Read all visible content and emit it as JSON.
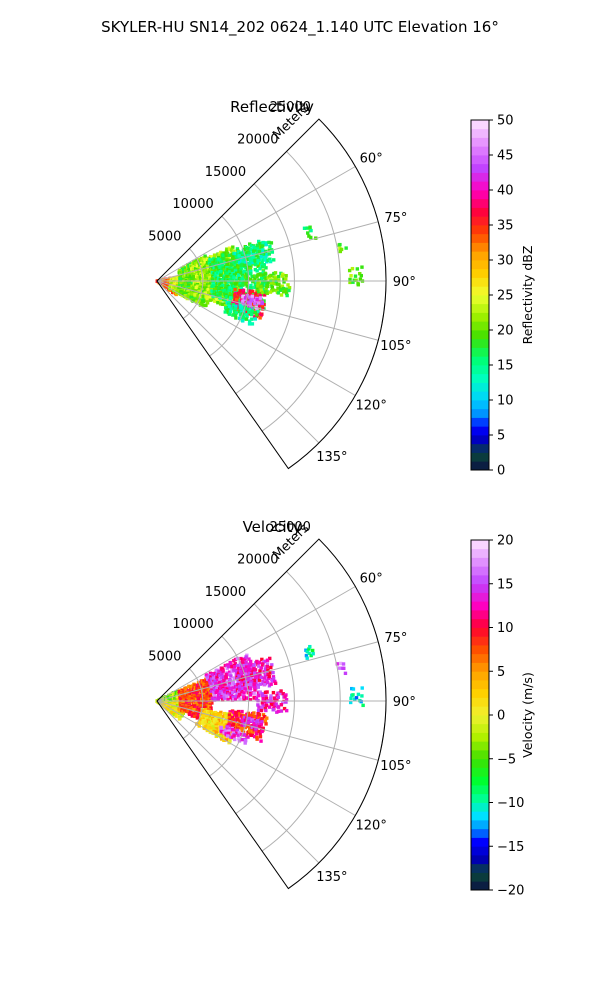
{
  "figure": {
    "suptitle": "SKYLER-HU  SN14_202  0624_1.140 UTC Elevation 16°"
  },
  "chart_data": [
    {
      "type": "polar-sector",
      "title": "Reflectivity",
      "range_label": "Meters",
      "r_ticks": [
        5000,
        10000,
        15000,
        20000,
        25000
      ],
      "r_tick_labels": [
        "5000",
        "10000",
        "15000",
        "20000",
        "25000"
      ],
      "r_max": 25000,
      "theta_ticks": [
        60,
        75,
        90,
        105,
        120,
        135
      ],
      "theta_tick_labels": [
        "60°",
        "75°",
        "90°",
        "105°",
        "120°",
        "135°"
      ],
      "theta_range": [
        45,
        145
      ],
      "colorbar": {
        "label": "Reflectivity dBZ",
        "min": 0,
        "max": 50,
        "ticks": [
          0,
          5,
          10,
          15,
          20,
          25,
          30,
          35,
          40,
          45,
          50
        ],
        "tick_labels": [
          "0",
          "5",
          "10",
          "15",
          "20",
          "25",
          "30",
          "35",
          "40",
          "45",
          "50"
        ],
        "stops": [
          {
            "v": 0,
            "c": "#0b0f45"
          },
          {
            "v": 2.5,
            "c": "#0a4a3a"
          },
          {
            "v": 4,
            "c": "#0000b0"
          },
          {
            "v": 6,
            "c": "#0000ff"
          },
          {
            "v": 8,
            "c": "#0090ff"
          },
          {
            "v": 10,
            "c": "#00d0ff"
          },
          {
            "v": 13,
            "c": "#00ffc0"
          },
          {
            "v": 16,
            "c": "#00ff70"
          },
          {
            "v": 19,
            "c": "#40e000"
          },
          {
            "v": 22,
            "c": "#a0f000"
          },
          {
            "v": 25,
            "c": "#f0ff30"
          },
          {
            "v": 28,
            "c": "#ffd000"
          },
          {
            "v": 31,
            "c": "#ffa000"
          },
          {
            "v": 34,
            "c": "#ff4000"
          },
          {
            "v": 37,
            "c": "#ff0040"
          },
          {
            "v": 40,
            "c": "#ff00c0"
          },
          {
            "v": 43,
            "c": "#c040ff"
          },
          {
            "v": 46,
            "c": "#e080ff"
          },
          {
            "v": 50,
            "c": "#ffe6ff"
          }
        ]
      },
      "echo_regions": [
        {
          "r": [
            0,
            2500
          ],
          "az": [
            78,
            125
          ],
          "value": 33
        },
        {
          "r": [
            1500,
            4000
          ],
          "az": [
            80,
            120
          ],
          "value": 24
        },
        {
          "r": [
            2500,
            6000
          ],
          "az": [
            62,
            118
          ],
          "value": 20
        },
        {
          "r": [
            4000,
            9000
          ],
          "az": [
            65,
            110
          ],
          "value": 22
        },
        {
          "r": [
            6000,
            12000
          ],
          "az": [
            68,
            105
          ],
          "value": 17
        },
        {
          "r": [
            9000,
            13000
          ],
          "az": [
            70,
            80
          ],
          "value": 15
        },
        {
          "r": [
            8500,
            12000
          ],
          "az": [
            96,
            110
          ],
          "value": 36
        },
        {
          "r": [
            9500,
            11500
          ],
          "az": [
            99,
            106
          ],
          "value": 45
        },
        {
          "r": [
            11000,
            14500
          ],
          "az": [
            86,
            96
          ],
          "value": 20
        },
        {
          "r": [
            8000,
            11500
          ],
          "az": [
            106,
            114
          ],
          "value": 15
        },
        {
          "r": [
            17000,
            17800
          ],
          "az": [
            70,
            74
          ],
          "value": 17
        },
        {
          "r": [
            20000,
            20800
          ],
          "az": [
            78,
            81
          ],
          "value": 20
        },
        {
          "r": [
            21000,
            22500
          ],
          "az": [
            86,
            90
          ],
          "value": 20
        }
      ]
    },
    {
      "type": "polar-sector",
      "title": "Velocity",
      "range_label": "Meters",
      "r_ticks": [
        5000,
        10000,
        15000,
        20000,
        25000
      ],
      "r_tick_labels": [
        "5000",
        "10000",
        "15000",
        "20000",
        "25000"
      ],
      "r_max": 25000,
      "theta_ticks": [
        60,
        75,
        90,
        105,
        120,
        135
      ],
      "theta_tick_labels": [
        "60°",
        "75°",
        "90°",
        "105°",
        "120°",
        "135°"
      ],
      "theta_range": [
        45,
        145
      ],
      "colorbar": {
        "label": "Velocity (m/s)",
        "min": -20,
        "max": 20,
        "ticks": [
          -20,
          -15,
          -10,
          -5,
          0,
          5,
          10,
          15,
          20
        ],
        "tick_labels": [
          "−20",
          "−15",
          "−10",
          "−5",
          "0",
          "5",
          "10",
          "15",
          "20"
        ],
        "stops": [
          {
            "v": -20,
            "c": "#0b0f45"
          },
          {
            "v": -18,
            "c": "#0a4a3a"
          },
          {
            "v": -16.5,
            "c": "#0000b0"
          },
          {
            "v": -14.5,
            "c": "#0000ff"
          },
          {
            "v": -13,
            "c": "#0090ff"
          },
          {
            "v": -11.5,
            "c": "#00e0ff"
          },
          {
            "v": -9.5,
            "c": "#00ff90"
          },
          {
            "v": -7.5,
            "c": "#00ff30"
          },
          {
            "v": -5,
            "c": "#40e000"
          },
          {
            "v": -2.5,
            "c": "#b0f000"
          },
          {
            "v": 0,
            "c": "#f0f030"
          },
          {
            "v": 2.5,
            "c": "#ffd000"
          },
          {
            "v": 5,
            "c": "#ffa000"
          },
          {
            "v": 7.5,
            "c": "#ff5000"
          },
          {
            "v": 10,
            "c": "#ff0030"
          },
          {
            "v": 12.5,
            "c": "#ff00c0"
          },
          {
            "v": 15,
            "c": "#c040ff"
          },
          {
            "v": 17.5,
            "c": "#e090ff"
          },
          {
            "v": 20,
            "c": "#ffe6ff"
          }
        ]
      },
      "echo_regions": [
        {
          "r": [
            0,
            3000
          ],
          "az": [
            78,
            128
          ],
          "value": 0
        },
        {
          "r": [
            0,
            2500
          ],
          "az": [
            62,
            80
          ],
          "value": -3
        },
        {
          "r": [
            2500,
            6000
          ],
          "az": [
            65,
            112
          ],
          "value": 8
        },
        {
          "r": [
            5000,
            9000
          ],
          "az": [
            100,
            120
          ],
          "value": 2
        },
        {
          "r": [
            6000,
            11000
          ],
          "az": [
            62,
            88
          ],
          "value": 14
        },
        {
          "r": [
            9000,
            13000
          ],
          "az": [
            68,
            82
          ],
          "value": 13
        },
        {
          "r": [
            11000,
            14000
          ],
          "az": [
            85,
            95
          ],
          "value": 13
        },
        {
          "r": [
            8000,
            12000
          ],
          "az": [
            97,
            110
          ],
          "value": 9
        },
        {
          "r": [
            9500,
            11500
          ],
          "az": [
            100,
            106
          ],
          "value": 14
        },
        {
          "r": [
            7500,
            10500
          ],
          "az": [
            110,
            116
          ],
          "value": 15
        },
        {
          "r": [
            17000,
            17800
          ],
          "az": [
            70,
            74
          ],
          "value": -10
        },
        {
          "r": [
            20000,
            20800
          ],
          "az": [
            78,
            81
          ],
          "value": 15
        },
        {
          "r": [
            21000,
            22500
          ],
          "az": [
            86,
            90
          ],
          "value": -12
        }
      ]
    }
  ]
}
